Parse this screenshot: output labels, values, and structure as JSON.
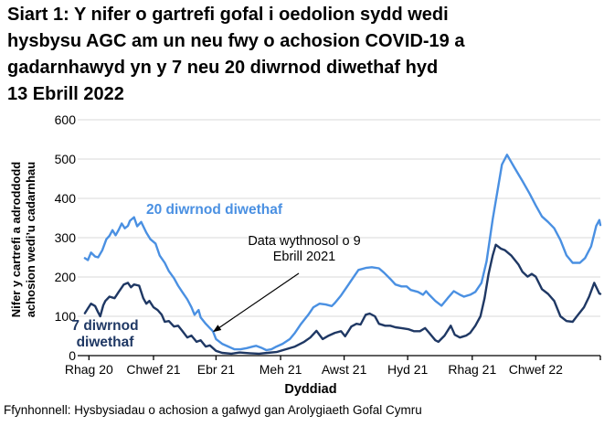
{
  "title": "Siart 1: Y nifer o gartrefi gofal i oedolion sydd wedi\nhysbysu AGC am un neu fwy o achosion COVID-19 a\ngadarnhawyd yn y 7 neu 20 diwrnod diwethaf hyd\n13 Ebrill 2022",
  "footer": "Ffynhonnell: Hysbysiadau o achosion a gafwyd gan Arolygiaeth Gofal Cymru",
  "chart_data": {
    "type": "line",
    "xlabel": "Dyddiad",
    "ylabel": "Nifer y cartrefi a adroddodd\nachosion wedi’u cadarnhau",
    "ylim": [
      0,
      600
    ],
    "yticks": [
      0,
      100,
      200,
      300,
      400,
      500,
      600
    ],
    "grid": "horizontal",
    "grid_color": "#d9d9d9",
    "axis_color": "#000000",
    "legend_position": "inline-labels",
    "x_unit": "days from chart start (late Nov 2020) to 13 Ebrill 2022",
    "x_max_day": 510,
    "xticks": [
      {
        "label": "Rhag 20",
        "d": 11
      },
      {
        "label": "Chwef 21",
        "d": 74
      },
      {
        "label": "Ebr 21",
        "d": 135
      },
      {
        "label": "Meh 21",
        "d": 198
      },
      {
        "label": "Awst 21",
        "d": 260
      },
      {
        "label": "Hyd 21",
        "d": 322
      },
      {
        "label": "Rhag 21",
        "d": 385
      },
      {
        "label": "Chwef 22",
        "d": 447
      },
      {
        "label": "",
        "d": 510
      }
    ],
    "annotation": {
      "text": "Data wythnosol o 9\nEbrill 2021",
      "target_day": 131,
      "target_value": 60
    },
    "series": [
      {
        "name": "20 diwrnod diwethaf",
        "color": "#4a90e2",
        "points": [
          [
            7,
            248
          ],
          [
            10,
            243
          ],
          [
            13,
            262
          ],
          [
            17,
            252
          ],
          [
            20,
            250
          ],
          [
            24,
            268
          ],
          [
            28,
            296
          ],
          [
            31,
            305
          ],
          [
            34,
            319
          ],
          [
            37,
            306
          ],
          [
            40,
            320
          ],
          [
            43,
            336
          ],
          [
            46,
            324
          ],
          [
            49,
            330
          ],
          [
            51,
            343
          ],
          [
            55,
            352
          ],
          [
            58,
            329
          ],
          [
            62,
            340
          ],
          [
            67,
            313
          ],
          [
            71,
            296
          ],
          [
            76,
            285
          ],
          [
            80,
            255
          ],
          [
            85,
            236
          ],
          [
            89,
            215
          ],
          [
            94,
            197
          ],
          [
            98,
            178
          ],
          [
            102,
            162
          ],
          [
            107,
            143
          ],
          [
            111,
            123
          ],
          [
            114,
            104
          ],
          [
            118,
            116
          ],
          [
            120,
            97
          ],
          [
            125,
            81
          ],
          [
            129,
            70
          ],
          [
            132,
            62
          ],
          [
            135,
            42
          ],
          [
            141,
            30
          ],
          [
            147,
            23
          ],
          [
            153,
            16
          ],
          [
            159,
            16
          ],
          [
            165,
            19
          ],
          [
            171,
            23
          ],
          [
            174,
            25
          ],
          [
            180,
            19
          ],
          [
            184,
            14
          ],
          [
            189,
            16
          ],
          [
            194,
            23
          ],
          [
            200,
            30
          ],
          [
            207,
            42
          ],
          [
            212,
            58
          ],
          [
            218,
            81
          ],
          [
            225,
            104
          ],
          [
            230,
            123
          ],
          [
            236,
            132
          ],
          [
            242,
            130
          ],
          [
            248,
            126
          ],
          [
            251,
            134
          ],
          [
            257,
            153
          ],
          [
            263,
            176
          ],
          [
            269,
            199
          ],
          [
            274,
            218
          ],
          [
            281,
            223
          ],
          [
            287,
            225
          ],
          [
            294,
            222
          ],
          [
            299,
            211
          ],
          [
            305,
            195
          ],
          [
            310,
            181
          ],
          [
            316,
            176
          ],
          [
            321,
            176
          ],
          [
            325,
            167
          ],
          [
            332,
            162
          ],
          [
            337,
            155
          ],
          [
            340,
            164
          ],
          [
            343,
            155
          ],
          [
            349,
            139
          ],
          [
            355,
            127
          ],
          [
            361,
            146
          ],
          [
            367,
            164
          ],
          [
            373,
            155
          ],
          [
            377,
            150
          ],
          [
            383,
            155
          ],
          [
            388,
            162
          ],
          [
            394,
            185
          ],
          [
            399,
            240
          ],
          [
            405,
            347
          ],
          [
            410,
            424
          ],
          [
            414,
            486
          ],
          [
            419,
            511
          ],
          [
            426,
            479
          ],
          [
            434,
            444
          ],
          [
            441,
            412
          ],
          [
            447,
            382
          ],
          [
            453,
            354
          ],
          [
            459,
            340
          ],
          [
            465,
            324
          ],
          [
            471,
            294
          ],
          [
            477,
            255
          ],
          [
            483,
            236
          ],
          [
            490,
            236
          ],
          [
            495,
            248
          ],
          [
            501,
            278
          ],
          [
            506,
            330
          ],
          [
            509,
            345
          ],
          [
            510,
            332
          ]
        ]
      },
      {
        "name": "7 diwrnod diwethaf",
        "color": "#1f3864",
        "points": [
          [
            7,
            108
          ],
          [
            10,
            120
          ],
          [
            13,
            132
          ],
          [
            17,
            126
          ],
          [
            20,
            110
          ],
          [
            22,
            100
          ],
          [
            25,
            128
          ],
          [
            27,
            139
          ],
          [
            31,
            150
          ],
          [
            36,
            146
          ],
          [
            40,
            162
          ],
          [
            45,
            181
          ],
          [
            49,
            185
          ],
          [
            52,
            174
          ],
          [
            55,
            181
          ],
          [
            60,
            178
          ],
          [
            64,
            146
          ],
          [
            67,
            132
          ],
          [
            70,
            139
          ],
          [
            74,
            123
          ],
          [
            78,
            116
          ],
          [
            82,
            104
          ],
          [
            85,
            86
          ],
          [
            89,
            88
          ],
          [
            94,
            74
          ],
          [
            98,
            76
          ],
          [
            102,
            63
          ],
          [
            107,
            46
          ],
          [
            111,
            51
          ],
          [
            116,
            35
          ],
          [
            120,
            39
          ],
          [
            125,
            23
          ],
          [
            129,
            26
          ],
          [
            135,
            12
          ],
          [
            141,
            7
          ],
          [
            150,
            5
          ],
          [
            158,
            8
          ],
          [
            168,
            6
          ],
          [
            177,
            5
          ],
          [
            185,
            7
          ],
          [
            194,
            9
          ],
          [
            203,
            16
          ],
          [
            212,
            23
          ],
          [
            221,
            35
          ],
          [
            227,
            46
          ],
          [
            233,
            63
          ],
          [
            239,
            42
          ],
          [
            245,
            51
          ],
          [
            251,
            58
          ],
          [
            257,
            62
          ],
          [
            261,
            49
          ],
          [
            267,
            74
          ],
          [
            272,
            81
          ],
          [
            276,
            79
          ],
          [
            281,
            104
          ],
          [
            285,
            107
          ],
          [
            290,
            100
          ],
          [
            294,
            81
          ],
          [
            300,
            76
          ],
          [
            305,
            76
          ],
          [
            310,
            72
          ],
          [
            316,
            70
          ],
          [
            323,
            67
          ],
          [
            328,
            62
          ],
          [
            334,
            62
          ],
          [
            339,
            70
          ],
          [
            343,
            58
          ],
          [
            349,
            39
          ],
          [
            352,
            35
          ],
          [
            358,
            51
          ],
          [
            364,
            76
          ],
          [
            368,
            53
          ],
          [
            373,
            46
          ],
          [
            379,
            51
          ],
          [
            383,
            58
          ],
          [
            388,
            76
          ],
          [
            393,
            100
          ],
          [
            397,
            146
          ],
          [
            401,
            208
          ],
          [
            405,
            255
          ],
          [
            408,
            282
          ],
          [
            413,
            272
          ],
          [
            417,
            268
          ],
          [
            423,
            255
          ],
          [
            430,
            232
          ],
          [
            434,
            213
          ],
          [
            439,
            201
          ],
          [
            443,
            208
          ],
          [
            447,
            201
          ],
          [
            453,
            169
          ],
          [
            459,
            157
          ],
          [
            465,
            139
          ],
          [
            471,
            100
          ],
          [
            477,
            88
          ],
          [
            483,
            86
          ],
          [
            488,
            103
          ],
          [
            494,
            123
          ],
          [
            499,
            150
          ],
          [
            504,
            185
          ],
          [
            509,
            158
          ],
          [
            510,
            157
          ]
        ]
      }
    ]
  }
}
